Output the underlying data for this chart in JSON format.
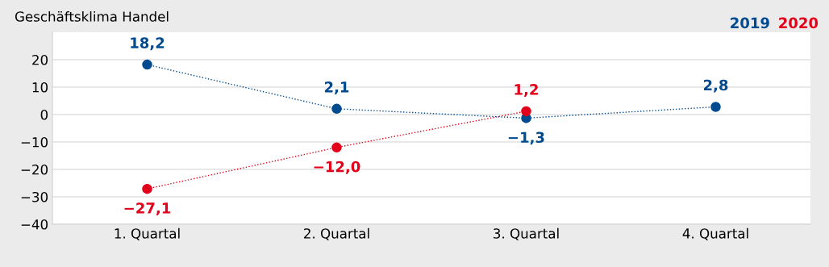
{
  "chart_data": {
    "type": "line",
    "title": "Geschäftsklima Handel",
    "categories": [
      "1. Quartal",
      "2. Quartal",
      "3. Quartal",
      "4. Quartal"
    ],
    "series": [
      {
        "name": "2019",
        "color": "#004a8f",
        "values": [
          18.2,
          2.1,
          -1.3,
          2.8
        ],
        "value_labels": [
          "18,2",
          "2,1",
          "−1,3",
          "2,8"
        ]
      },
      {
        "name": "2020",
        "color": "#e2001a",
        "values": [
          -27.1,
          -12.0,
          1.2,
          null
        ],
        "value_labels": [
          "−27,1",
          "−12,0",
          "1,2",
          null
        ]
      }
    ],
    "ylim": [
      -40,
      30
    ],
    "yticks": [
      {
        "value": -40,
        "label": "−40"
      },
      {
        "value": -30,
        "label": "−30"
      },
      {
        "value": -20,
        "label": "−20"
      },
      {
        "value": -10,
        "label": "−10"
      },
      0,
      10,
      20
    ],
    "grid": "y",
    "legend": "top right",
    "marker": "circle",
    "line_style": "dotted"
  }
}
